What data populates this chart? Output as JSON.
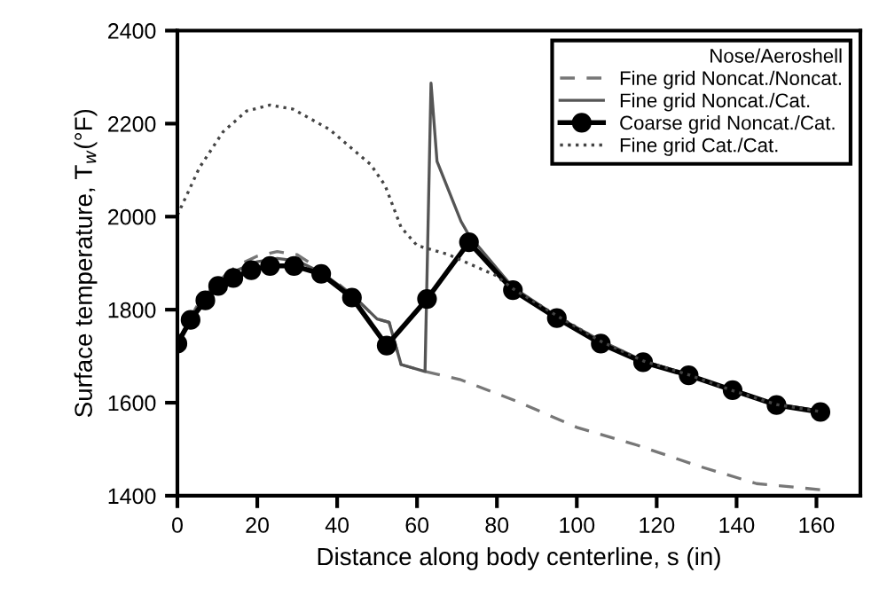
{
  "chart_data": {
    "type": "line",
    "xlabel": "Distance along body centerline, s (in)",
    "ylabel": "Surface temperature, T$_{w}$(°F)",
    "legend_title": "Nose/Aeroshell",
    "legend": "top right",
    "grid": false,
    "xlim": [
      0,
      171
    ],
    "ylim": [
      1400,
      2400
    ],
    "xticks": [
      0,
      20,
      40,
      60,
      80,
      100,
      120,
      140,
      160
    ],
    "yticks": [
      1400,
      1600,
      1800,
      2000,
      2200,
      2400
    ],
    "series": [
      {
        "name": "Fine grid Noncat./Noncat.",
        "color": "#777777",
        "line_style": "dashed",
        "marker": "none",
        "x": [
          0,
          5,
          10,
          15,
          20,
          25,
          30,
          36,
          44,
          50,
          53,
          56,
          62,
          70.7,
          85,
          100,
          115,
          130,
          145,
          161
        ],
        "values": [
          1730,
          1810,
          1860,
          1895,
          1915,
          1925,
          1918,
          1885,
          1830,
          1780,
          1773,
          1682,
          1667,
          1650,
          1603,
          1547,
          1509,
          1465,
          1426,
          1413
        ]
      },
      {
        "name": "Fine grid Noncat./Cat.",
        "color": "#555555",
        "line_style": "solid",
        "marker": "none",
        "x": [
          0,
          5,
          10,
          15,
          20,
          25,
          30,
          36,
          44,
          50,
          53,
          56,
          62,
          63.5,
          65,
          71,
          73,
          84,
          95,
          106,
          116.6,
          128,
          139,
          150,
          161
        ],
        "values": [
          1730,
          1805,
          1855,
          1885,
          1903,
          1910,
          1905,
          1880,
          1830,
          1780,
          1773,
          1682,
          1667,
          2287,
          2119,
          1990,
          1960,
          1848,
          1785,
          1733,
          1690,
          1660,
          1625,
          1597,
          1582
        ]
      },
      {
        "name": "Coarse grid Noncat./Cat.",
        "color": "#000000",
        "line_style": "solid",
        "marker": "circle",
        "x": [
          0,
          3.3,
          7,
          10.2,
          14,
          18.5,
          23.2,
          29.2,
          36,
          43.7,
          52.4,
          62.5,
          73,
          84,
          95,
          106,
          116.6,
          128,
          139,
          150,
          161
        ],
        "values": [
          1727,
          1778,
          1820,
          1851,
          1868,
          1885,
          1894,
          1894,
          1877,
          1826,
          1723,
          1823,
          1945,
          1842,
          1782,
          1727,
          1687,
          1659,
          1627,
          1595,
          1580
        ]
      },
      {
        "name": "Fine grid Cat./Cat.",
        "color": "#444444",
        "line_style": "dotted",
        "marker": "none",
        "x": [
          0,
          5.5,
          11.4,
          17.3,
          23.2,
          29,
          38,
          48.4,
          52,
          56,
          60,
          67.7,
          79.6,
          84,
          95,
          106,
          116.6,
          128,
          139,
          150,
          161
        ],
        "values": [
          2003,
          2105,
          2182,
          2227,
          2240,
          2231,
          2188,
          2112,
          2067,
          1977,
          1938,
          1919,
          1874,
          1845,
          1787,
          1732,
          1690,
          1660,
          1626,
          1596,
          1581
        ]
      }
    ]
  }
}
